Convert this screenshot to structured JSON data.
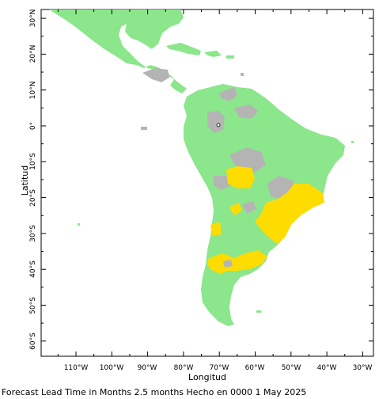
{
  "axes": {
    "x_title": "Longitud",
    "y_title": "Latitud",
    "lon_ticks": [
      "110°W",
      "100°W",
      "90°W",
      "80°W",
      "70°W",
      "60°W",
      "50°W",
      "40°W",
      "30°W"
    ],
    "lat_ticks": [
      "30°N",
      "20°N",
      "10°N",
      "0°",
      "10°S",
      "20°S",
      "30°S",
      "40°S",
      "50°S",
      "60°S"
    ]
  },
  "caption": "Forecast Lead Time in Months 2.5 months Hecho en 0000 1 May 2025",
  "colors": {
    "land_green": "#8ce68c",
    "gray": "#b4b4b4",
    "yellow": "#ffdc00",
    "frame": "#000000"
  }
}
